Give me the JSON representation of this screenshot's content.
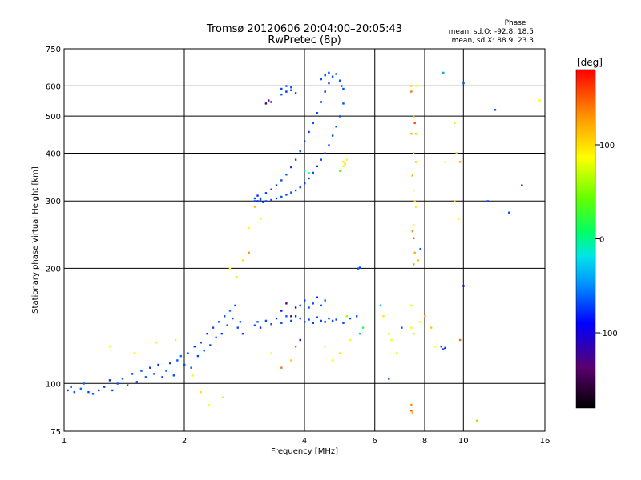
{
  "chart_data": {
    "type": "scatter",
    "title": "Tromsø 20120606 20:04:00–20:05:43",
    "subtitle": "RwPretec (8p)",
    "xlabel": "Frequency [MHz]",
    "ylabel": "Stationary phase Virtual Height [km]",
    "x_scale": "log2",
    "y_scale": "log",
    "xlim": [
      1,
      16
    ],
    "ylim": [
      75,
      750
    ],
    "x_ticks": [
      1,
      2,
      4,
      6,
      8,
      10,
      16
    ],
    "y_ticks": [
      75,
      100,
      200,
      300,
      400,
      500,
      600,
      750
    ],
    "grid": true,
    "phase_box": {
      "title": "Phase",
      "line_o": "mean, sd,O: -92.8, 18.5",
      "line_x": "mean, sd,X: 88.9, 23.3"
    },
    "colorbar": {
      "unit": "[deg]",
      "range": [
        -180,
        180
      ],
      "ticks": [
        100,
        0,
        -100
      ]
    },
    "series": [
      {
        "name": "",
        "points": [
          [
            1.02,
            96,
            -110
          ],
          [
            1.04,
            98,
            -105
          ],
          [
            1.06,
            95,
            -100
          ],
          [
            1.1,
            97,
            -90
          ],
          [
            1.12,
            100,
            -95
          ],
          [
            1.15,
            95,
            -100
          ],
          [
            1.18,
            94,
            -100
          ],
          [
            1.22,
            96,
            -105
          ],
          [
            1.26,
            98,
            -100
          ],
          [
            1.3,
            102,
            -110
          ],
          [
            1.32,
            96,
            -100
          ],
          [
            1.36,
            100,
            -100
          ],
          [
            1.4,
            103,
            -95
          ],
          [
            1.44,
            99,
            -100
          ],
          [
            1.48,
            106,
            -105
          ],
          [
            1.52,
            101,
            -110
          ],
          [
            1.56,
            108,
            -100
          ],
          [
            1.6,
            104,
            -95
          ],
          [
            1.64,
            110,
            -105
          ],
          [
            1.68,
            106,
            -100
          ],
          [
            1.72,
            112,
            -110
          ],
          [
            1.76,
            104,
            -100
          ],
          [
            1.8,
            108,
            -95
          ],
          [
            1.84,
            113,
            -100
          ],
          [
            1.88,
            105,
            -100
          ],
          [
            1.92,
            115,
            -100
          ],
          [
            1.96,
            118,
            -90
          ],
          [
            2.0,
            112,
            -100
          ],
          [
            2.04,
            120,
            -95
          ],
          [
            2.08,
            110,
            -100
          ],
          [
            2.12,
            125,
            -110
          ],
          [
            2.16,
            118,
            -100
          ],
          [
            2.2,
            128,
            -100
          ],
          [
            2.24,
            122,
            -100
          ],
          [
            2.28,
            135,
            -110
          ],
          [
            2.32,
            126,
            -100
          ],
          [
            2.36,
            140,
            -100
          ],
          [
            2.4,
            132,
            -95
          ],
          [
            2.44,
            145,
            -100
          ],
          [
            2.48,
            135,
            -105
          ],
          [
            2.52,
            150,
            -100
          ],
          [
            2.56,
            142,
            -100
          ],
          [
            2.6,
            155,
            -90
          ],
          [
            2.64,
            148,
            -100
          ],
          [
            2.68,
            160,
            -110
          ],
          [
            2.72,
            140,
            -100
          ],
          [
            2.76,
            145,
            -100
          ],
          [
            2.8,
            135,
            -105
          ],
          [
            3.0,
            142,
            -100
          ],
          [
            3.05,
            145,
            -100
          ],
          [
            3.1,
            140,
            -110
          ],
          [
            3.2,
            146,
            -100
          ],
          [
            3.3,
            143,
            -100
          ],
          [
            3.4,
            148,
            -105
          ],
          [
            3.5,
            144,
            -100
          ],
          [
            3.6,
            150,
            -95
          ],
          [
            3.7,
            146,
            -100
          ],
          [
            3.8,
            150,
            -110
          ],
          [
            3.9,
            148,
            -100
          ],
          [
            4.0,
            145,
            -100
          ],
          [
            4.1,
            147,
            -100
          ],
          [
            4.2,
            144,
            -105
          ],
          [
            4.3,
            149,
            -100
          ],
          [
            4.4,
            146,
            -100
          ],
          [
            4.5,
            145,
            -110
          ],
          [
            4.6,
            148,
            -100
          ],
          [
            4.7,
            146,
            -100
          ],
          [
            4.8,
            147,
            -100
          ],
          [
            5.0,
            144,
            -100
          ],
          [
            5.2,
            148,
            -100
          ],
          [
            5.4,
            150,
            -100
          ],
          [
            3.9,
            160,
            -100
          ],
          [
            4.0,
            165,
            -105
          ],
          [
            4.1,
            158,
            -100
          ],
          [
            4.2,
            162,
            -100
          ],
          [
            4.3,
            168,
            -110
          ],
          [
            4.4,
            160,
            -100
          ],
          [
            4.5,
            165,
            -95
          ],
          [
            3.5,
            155,
            -120
          ],
          [
            3.6,
            162,
            -160
          ],
          [
            3.7,
            150,
            -160
          ],
          [
            3.8,
            158,
            -150
          ],
          [
            5.45,
            200,
            -100
          ],
          [
            5.5,
            201,
            -100
          ],
          [
            3.0,
            305,
            -100
          ],
          [
            3.05,
            300,
            -110
          ],
          [
            3.1,
            302,
            -100
          ],
          [
            3.15,
            298,
            -100
          ],
          [
            3.2,
            300,
            -100
          ],
          [
            3.3,
            302,
            -105
          ],
          [
            3.4,
            305,
            -100
          ],
          [
            3.5,
            308,
            -100
          ],
          [
            3.6,
            312,
            -110
          ],
          [
            3.7,
            316,
            -100
          ],
          [
            3.8,
            320,
            -100
          ],
          [
            3.9,
            326,
            -100
          ],
          [
            4.0,
            334,
            -105
          ],
          [
            4.1,
            344,
            -100
          ],
          [
            4.2,
            356,
            -100
          ],
          [
            4.3,
            370,
            -110
          ],
          [
            4.4,
            385,
            -100
          ],
          [
            4.5,
            400,
            -100
          ],
          [
            4.6,
            420,
            -100
          ],
          [
            4.7,
            445,
            -100
          ],
          [
            4.8,
            470,
            -100
          ],
          [
            4.9,
            500,
            -100
          ],
          [
            5.0,
            540,
            -100
          ],
          [
            3.0,
            300,
            -100
          ],
          [
            3.05,
            310,
            -110
          ],
          [
            3.1,
            305,
            -100
          ],
          [
            3.2,
            315,
            -100
          ],
          [
            3.3,
            322,
            -100
          ],
          [
            3.4,
            330,
            -105
          ],
          [
            3.5,
            340,
            -100
          ],
          [
            3.6,
            352,
            -100
          ],
          [
            3.7,
            368,
            -110
          ],
          [
            3.8,
            385,
            -100
          ],
          [
            3.9,
            405,
            -100
          ],
          [
            4.0,
            430,
            -100
          ],
          [
            4.1,
            455,
            -105
          ],
          [
            4.2,
            480,
            -100
          ],
          [
            4.3,
            510,
            -100
          ],
          [
            4.4,
            545,
            -100
          ],
          [
            4.5,
            580,
            -110
          ],
          [
            4.6,
            610,
            -100
          ],
          [
            4.7,
            635,
            -100
          ],
          [
            4.8,
            645,
            -100
          ],
          [
            4.9,
            620,
            -100
          ],
          [
            4.95,
            600,
            -100
          ],
          [
            5.0,
            590,
            -100
          ],
          [
            4.6,
            650,
            -100
          ],
          [
            4.5,
            640,
            -105
          ],
          [
            4.4,
            625,
            -100
          ],
          [
            3.5,
            570,
            -100
          ],
          [
            3.6,
            580,
            -110
          ],
          [
            3.7,
            585,
            -100
          ],
          [
            3.8,
            575,
            -100
          ],
          [
            3.5,
            590,
            -105
          ],
          [
            3.6,
            600,
            -100
          ],
          [
            3.7,
            595,
            -100
          ],
          [
            3.2,
            540,
            -150
          ],
          [
            3.25,
            550,
            -160
          ],
          [
            3.3,
            545,
            -130
          ],
          [
            5.0,
            380,
            110
          ],
          [
            5.05,
            375,
            115
          ],
          [
            5.0,
            370,
            105
          ],
          [
            5.1,
            385,
            100
          ],
          [
            4.9,
            360,
            40
          ],
          [
            4.0,
            360,
            -30
          ],
          [
            4.1,
            355,
            0
          ],
          [
            7.4,
            600,
            120
          ],
          [
            7.4,
            580,
            150
          ],
          [
            7.6,
            600,
            100
          ],
          [
            7.5,
            500,
            130
          ],
          [
            7.55,
            480,
            160
          ],
          [
            7.6,
            450,
            120
          ],
          [
            7.4,
            450,
            130
          ],
          [
            7.5,
            400,
            140
          ],
          [
            7.6,
            380,
            120
          ],
          [
            7.45,
            350,
            130
          ],
          [
            7.5,
            320,
            100
          ],
          [
            7.55,
            300,
            120
          ],
          [
            7.6,
            290,
            110
          ],
          [
            7.5,
            260,
            100
          ],
          [
            7.45,
            250,
            140
          ],
          [
            7.5,
            240,
            160
          ],
          [
            7.55,
            220,
            130
          ],
          [
            7.8,
            225,
            -100
          ],
          [
            7.7,
            210,
            120
          ],
          [
            7.5,
            205,
            140
          ],
          [
            7.4,
            160,
            90
          ],
          [
            7.4,
            140,
            100
          ],
          [
            7.5,
            135,
            80
          ],
          [
            7.8,
            145,
            110
          ],
          [
            8.0,
            150,
            130
          ],
          [
            8.3,
            140,
            120
          ],
          [
            8.5,
            125,
            100
          ],
          [
            8.8,
            125,
            -110
          ],
          [
            8.9,
            123,
            -100
          ],
          [
            9.0,
            124,
            -120
          ],
          [
            6.2,
            160,
            -60
          ],
          [
            6.3,
            150,
            110
          ],
          [
            6.5,
            135,
            90
          ],
          [
            6.6,
            130,
            100
          ],
          [
            6.8,
            120,
            110
          ],
          [
            7.0,
            140,
            -100
          ],
          [
            6.5,
            103,
            -100
          ],
          [
            7.4,
            88,
            140
          ],
          [
            7.4,
            85,
            160
          ],
          [
            7.45,
            84,
            130
          ],
          [
            10.8,
            80,
            60
          ],
          [
            10.0,
            180,
            -120
          ],
          [
            11.5,
            300,
            -100
          ],
          [
            12.0,
            520,
            -100
          ],
          [
            13.0,
            280,
            -100
          ],
          [
            14.0,
            330,
            -110
          ],
          [
            15.5,
            550,
            100
          ],
          [
            10.0,
            610,
            -100
          ],
          [
            8.9,
            650,
            -70
          ],
          [
            9.5,
            480,
            110
          ],
          [
            9.6,
            400,
            130
          ],
          [
            9.8,
            380,
            140
          ],
          [
            9.5,
            300,
            120
          ],
          [
            9.7,
            270,
            100
          ],
          [
            9.0,
            380,
            100
          ],
          [
            9.8,
            130,
            150
          ],
          [
            1.3,
            125,
            100
          ],
          [
            1.5,
            120,
            110
          ],
          [
            1.7,
            128,
            100
          ],
          [
            1.9,
            130,
            90
          ],
          [
            2.1,
            105,
            100
          ],
          [
            2.2,
            95,
            110
          ],
          [
            2.3,
            88,
            100
          ],
          [
            2.5,
            92,
            80
          ],
          [
            2.6,
            200,
            100
          ],
          [
            2.8,
            210,
            110
          ],
          [
            2.9,
            220,
            140
          ],
          [
            2.7,
            190,
            80
          ],
          [
            2.9,
            255,
            100
          ],
          [
            3.0,
            290,
            130
          ],
          [
            3.1,
            270,
            110
          ],
          [
            3.3,
            120,
            100
          ],
          [
            3.5,
            110,
            150
          ],
          [
            3.7,
            115,
            120
          ],
          [
            3.8,
            125,
            160
          ],
          [
            3.9,
            130,
            -140
          ],
          [
            4.5,
            125,
            90
          ],
          [
            4.7,
            115,
            100
          ],
          [
            4.9,
            120,
            110
          ],
          [
            5.2,
            130,
            100
          ],
          [
            5.5,
            135,
            -50
          ],
          [
            5.6,
            140,
            10
          ],
          [
            5.1,
            150,
            70
          ]
        ]
      }
    ]
  }
}
